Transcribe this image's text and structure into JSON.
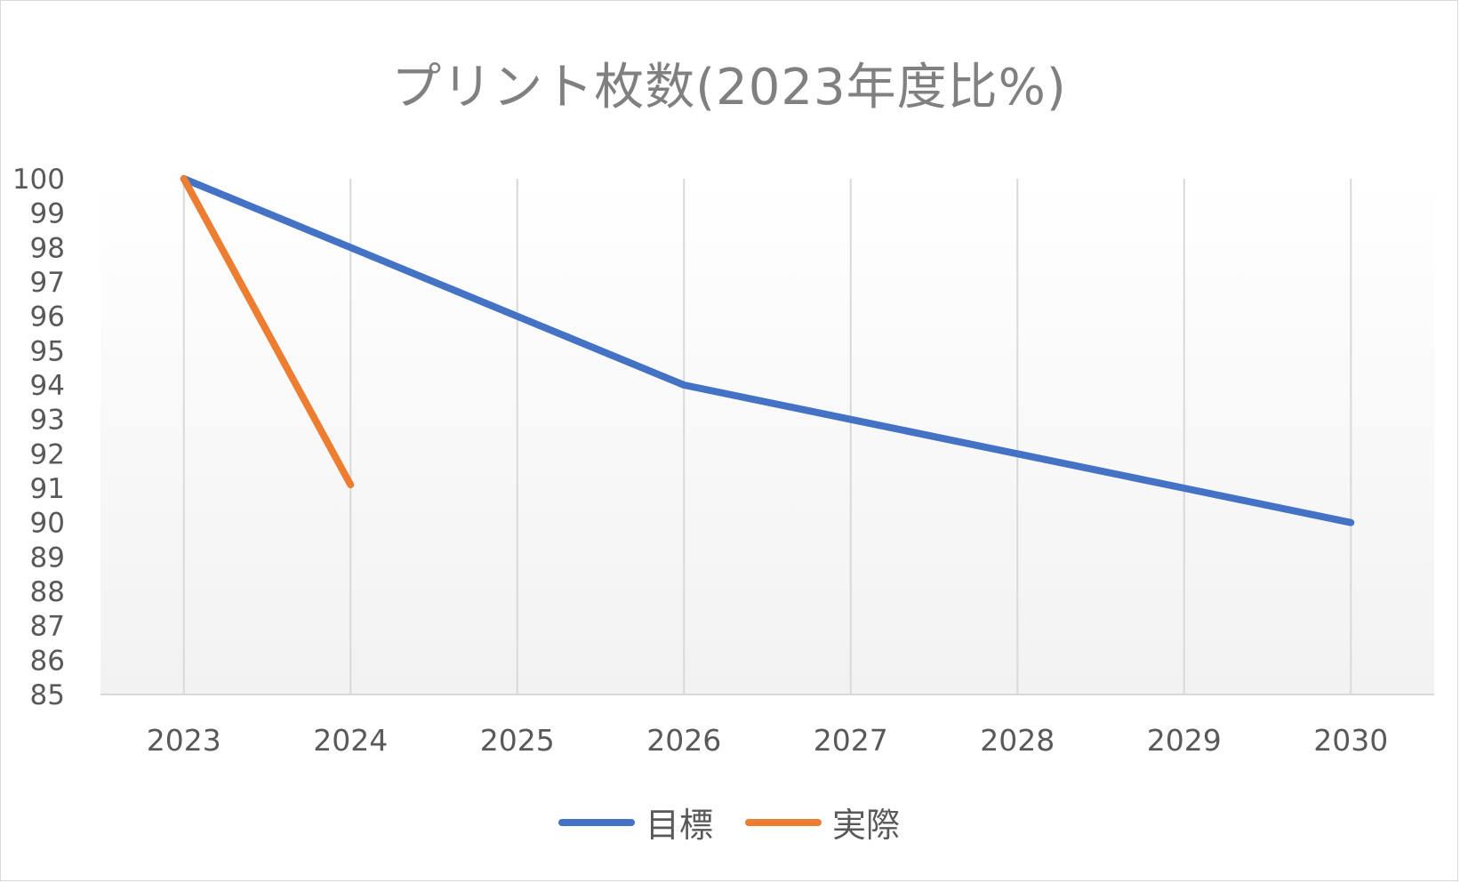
{
  "chart_data": {
    "type": "line",
    "title": "プリント枚数(2023年度比%)",
    "xlabel": "",
    "ylabel": "",
    "categories": [
      "2023",
      "2024",
      "2025",
      "2026",
      "2027",
      "2028",
      "2029",
      "2030"
    ],
    "ylim": [
      85,
      100
    ],
    "yticks": [
      "100",
      "99",
      "98",
      "97",
      "96",
      "95",
      "94",
      "93",
      "92",
      "91",
      "90",
      "89",
      "88",
      "87",
      "86",
      "85"
    ],
    "grid": "vertical",
    "legend_position": "bottom",
    "series": [
      {
        "name": "目標",
        "color": "#4472C4",
        "values": [
          100,
          98,
          96,
          94,
          93,
          92,
          91,
          90
        ]
      },
      {
        "name": "実際",
        "color": "#ED7D31",
        "values": [
          100,
          91.1,
          null,
          null,
          null,
          null,
          null,
          null
        ]
      }
    ]
  }
}
